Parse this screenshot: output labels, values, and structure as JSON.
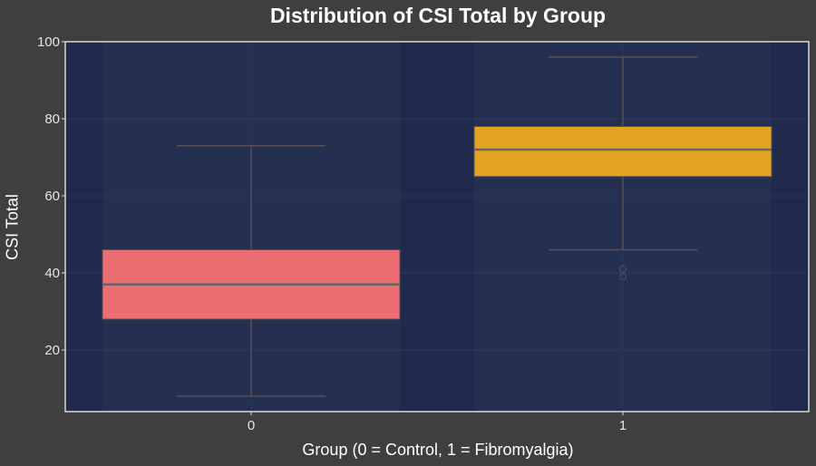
{
  "chart_data": {
    "type": "box",
    "title": "Distribution of CSI Total by Group",
    "xlabel": "Group (0 = Control, 1 = Fibromyalgia)",
    "ylabel": "CSI Total",
    "categories": [
      "0",
      "1"
    ],
    "ylim": [
      4,
      100
    ],
    "yticks": [
      20,
      40,
      60,
      80,
      100
    ],
    "grid": true,
    "boxes": [
      {
        "category": "0",
        "whisker_low": 8,
        "q1": 28,
        "median": 37,
        "q3": 46,
        "whisker_high": 73,
        "outliers": [],
        "color": "#eb6e72"
      },
      {
        "category": "1",
        "whisker_low": 46,
        "q1": 65,
        "median": 72,
        "q3": 78,
        "whisker_high": 96,
        "outliers": [
          39,
          41
        ],
        "color": "#e3a521"
      }
    ]
  },
  "colors": {
    "background": "#3f3f3f",
    "plot_background": "#202a4c",
    "axis": "#d8d8d8",
    "whisker": "#5a4f55",
    "median": "#666666"
  }
}
